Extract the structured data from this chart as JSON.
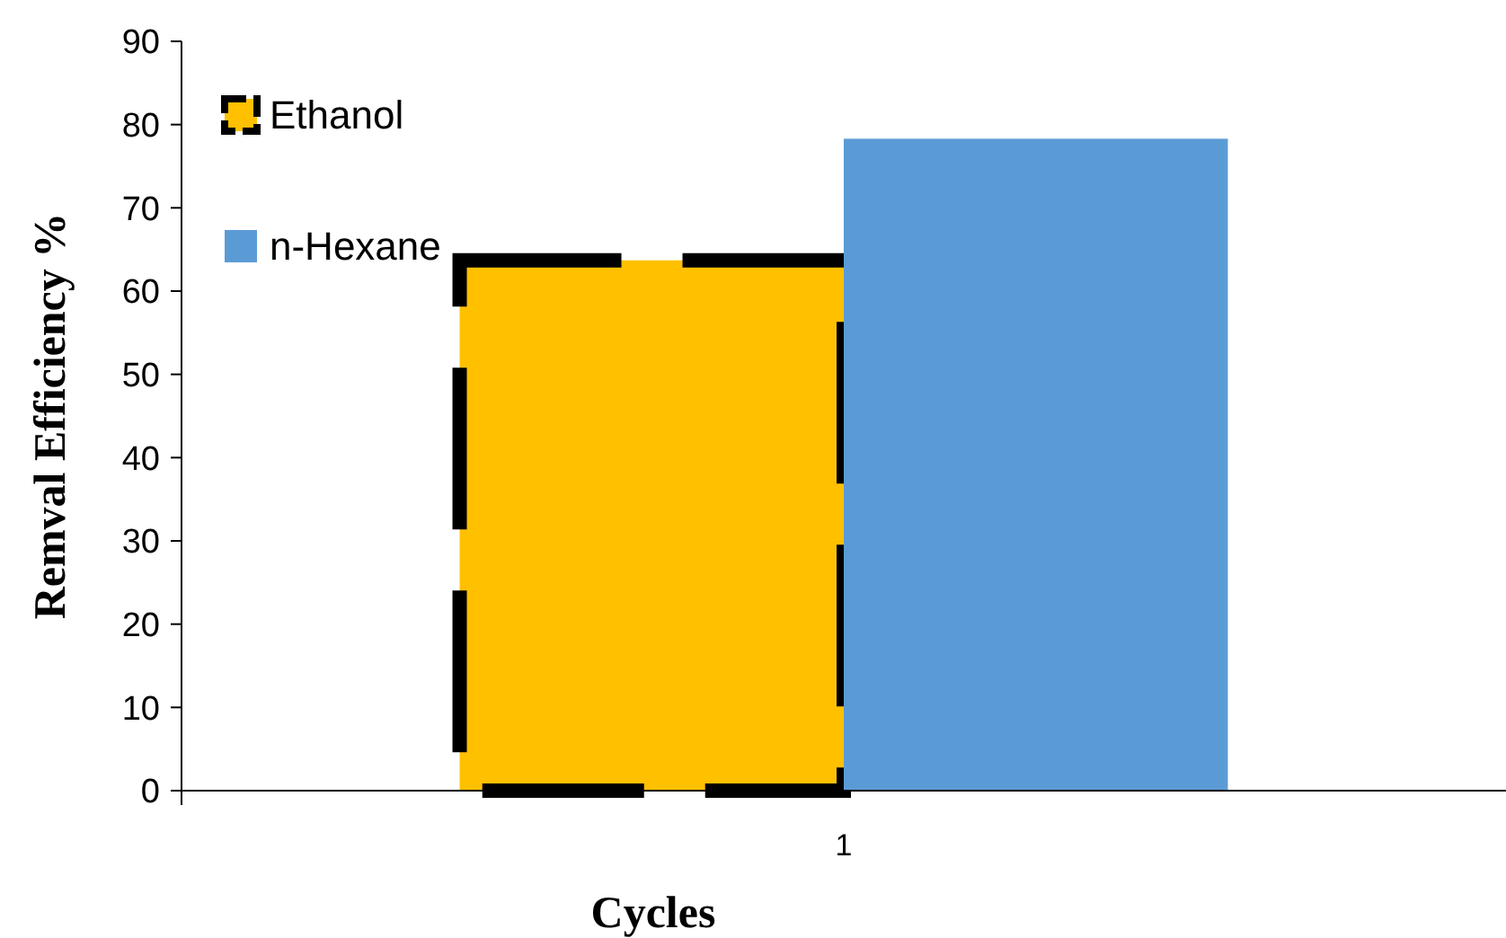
{
  "chart_data": {
    "type": "bar",
    "xlabel": "Cycles",
    "ylabel": "Remval Efficiency %",
    "categories": [
      "1"
    ],
    "series": [
      {
        "name": "Ethanol",
        "color": "#ffc000",
        "values": [
          63.7
        ],
        "line_style": "dashed"
      },
      {
        "name": "n-Hexane",
        "color": "#5b9bd5",
        "values": [
          78.3
        ]
      }
    ],
    "ylim": [
      0,
      90
    ],
    "yticks": [
      0,
      10,
      20,
      30,
      40,
      50,
      60,
      70,
      80,
      90
    ],
    "grid": false,
    "legend": "top left"
  }
}
